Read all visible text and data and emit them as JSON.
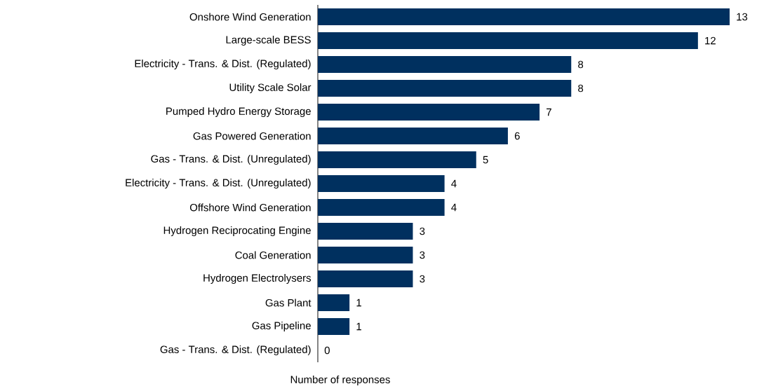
{
  "chart_data": {
    "type": "bar",
    "orientation": "horizontal",
    "xlabel": "Number of responses",
    "categories": [
      "Onshore Wind Generation",
      "Large-scale BESS",
      "Electricity - Trans. & Dist. (Regulated)",
      "Utility Scale Solar",
      "Pumped Hydro Energy Storage",
      "Gas Powered Generation",
      "Gas - Trans. & Dist. (Unregulated)",
      "Electricity - Trans. & Dist. (Unregulated)",
      "Offshore Wind Generation",
      "Hydrogen Reciprocating Engine",
      "Coal Generation",
      "Hydrogen Electrolysers",
      "Gas Plant",
      "Gas Pipeline",
      "Gas - Trans. & Dist. (Regulated)"
    ],
    "values": [
      13,
      12,
      8,
      8,
      7,
      6,
      5,
      4,
      4,
      3,
      3,
      3,
      1,
      1,
      0
    ],
    "color": "#00305f",
    "data_labels": true
  }
}
